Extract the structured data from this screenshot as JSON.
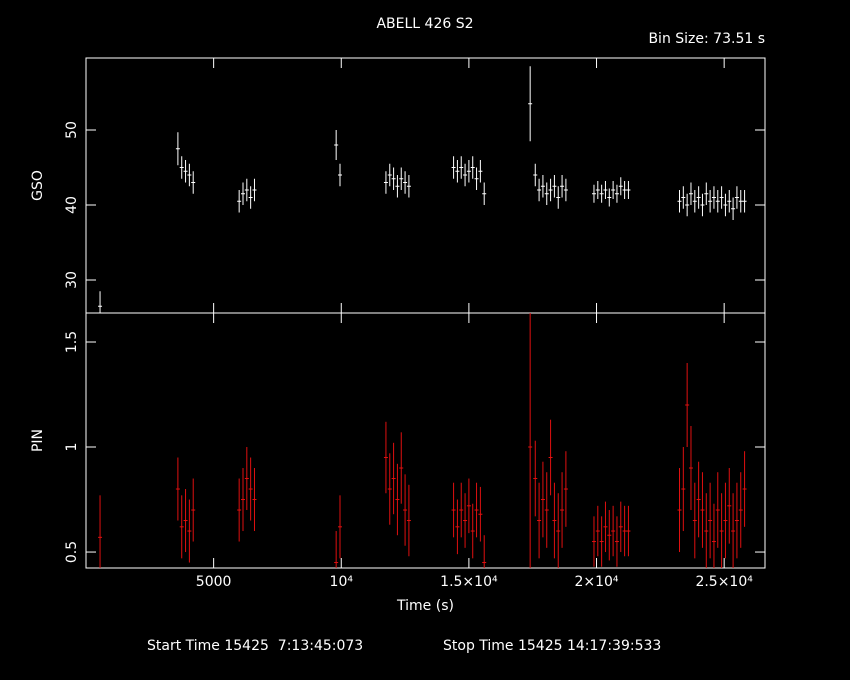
{
  "title": "ABELL 426 S2",
  "subtitle": "Bin Size: 73.51 s",
  "footer": {
    "start": "Start Time 15425  7:13:45:073",
    "stop": "Stop Time 15425 14:17:39:533"
  },
  "chart_data": [
    {
      "type": "errorbar",
      "ylabel": "GSO",
      "color": "#ffffff",
      "x": [
        550,
        3600,
        3750,
        3900,
        4050,
        4200,
        6000,
        6150,
        6300,
        6450,
        6600,
        9800,
        9950,
        11750,
        11900,
        12050,
        12200,
        12350,
        12500,
        12650,
        14400,
        14550,
        14700,
        14850,
        15000,
        15150,
        15300,
        15450,
        15600,
        17400,
        17600,
        17750,
        17900,
        18050,
        18200,
        18350,
        18500,
        18650,
        18800,
        19900,
        20050,
        20200,
        20350,
        20500,
        20650,
        20800,
        20950,
        21100,
        21250,
        23250,
        23400,
        23550,
        23700,
        23850,
        24000,
        24150,
        24300,
        24450,
        24600,
        24750,
        24900,
        25050,
        25200,
        25350,
        25500,
        25650,
        25800
      ],
      "values": [
        26.5,
        47.5,
        45,
        44.5,
        44,
        43,
        40.5,
        41.5,
        42,
        41,
        42,
        48,
        44,
        43,
        44,
        43.5,
        42.5,
        43.5,
        43,
        42.5,
        45,
        44.5,
        45,
        44,
        44.5,
        45,
        43.5,
        44.5,
        41.5,
        53.5,
        44,
        42,
        42.5,
        41.5,
        42,
        42.5,
        41,
        42.5,
        42,
        41.5,
        42,
        41.5,
        42,
        41,
        42,
        41.5,
        42.5,
        42,
        42,
        40.5,
        41,
        40,
        41.5,
        40.5,
        41,
        40,
        41.5,
        40.5,
        41,
        40.5,
        41,
        40,
        40.5,
        39.5,
        41,
        40.5,
        40.5
      ],
      "errors": [
        2,
        2.2,
        1.5,
        1.5,
        1.5,
        1.5,
        1.5,
        1.5,
        1.5,
        1.5,
        1.5,
        2,
        1.5,
        1.5,
        1.5,
        1.5,
        1.5,
        1.5,
        1.5,
        1.5,
        1.5,
        1.5,
        1.5,
        1.5,
        1.5,
        1.5,
        1.5,
        1.5,
        1.5,
        5,
        1.5,
        1.5,
        1.5,
        1.5,
        1.5,
        1.5,
        1.5,
        1.5,
        1.5,
        1.2,
        1.2,
        1.2,
        1.2,
        1.2,
        1.2,
        1.2,
        1.2,
        1.2,
        1.2,
        1.5,
        1.5,
        1.5,
        1.5,
        1.5,
        1.5,
        1.5,
        1.5,
        1.5,
        1.5,
        1.5,
        1.5,
        1.5,
        1.5,
        1.5,
        1.5,
        1.5,
        1.5
      ],
      "ylim": [
        25.6,
        59.6
      ],
      "yticks": [
        30,
        40,
        50
      ]
    },
    {
      "type": "errorbar",
      "ylabel": "PIN",
      "xlabel": "Time (s)",
      "color": "#e01010",
      "x": [
        550,
        3600,
        3750,
        3900,
        4050,
        4200,
        6000,
        6150,
        6300,
        6450,
        6600,
        9800,
        9950,
        11750,
        11900,
        12050,
        12200,
        12350,
        12500,
        12650,
        14400,
        14550,
        14700,
        14850,
        15000,
        15150,
        15300,
        15450,
        15600,
        17400,
        17600,
        17750,
        17900,
        18050,
        18200,
        18350,
        18500,
        18650,
        18800,
        19900,
        20050,
        20200,
        20350,
        20500,
        20650,
        20800,
        20950,
        21100,
        21250,
        23250,
        23400,
        23550,
        23700,
        23850,
        24000,
        24150,
        24300,
        24450,
        24600,
        24750,
        24900,
        25050,
        25200,
        25350,
        25500,
        25650,
        25800
      ],
      "values": [
        0.57,
        0.8,
        0.62,
        0.65,
        0.6,
        0.7,
        0.7,
        0.75,
        0.85,
        0.8,
        0.75,
        0.45,
        0.62,
        0.95,
        0.8,
        0.85,
        0.75,
        0.9,
        0.7,
        0.65,
        0.7,
        0.62,
        0.7,
        0.65,
        0.72,
        0.6,
        0.7,
        0.68,
        0.45,
        1.0,
        0.85,
        0.65,
        0.75,
        0.7,
        0.95,
        0.65,
        0.6,
        0.7,
        0.8,
        0.55,
        0.6,
        0.55,
        0.62,
        0.58,
        0.6,
        0.55,
        0.62,
        0.6,
        0.6,
        0.7,
        0.8,
        1.2,
        0.9,
        0.65,
        0.75,
        0.7,
        0.6,
        0.65,
        0.55,
        0.7,
        0.6,
        0.65,
        0.72,
        0.6,
        0.65,
        0.7,
        0.8
      ],
      "errors": [
        0.2,
        0.15,
        0.15,
        0.15,
        0.15,
        0.15,
        0.15,
        0.15,
        0.15,
        0.15,
        0.15,
        0.15,
        0.15,
        0.17,
        0.17,
        0.17,
        0.17,
        0.17,
        0.17,
        0.17,
        0.13,
        0.13,
        0.13,
        0.13,
        0.13,
        0.13,
        0.13,
        0.13,
        0.13,
        0.65,
        0.18,
        0.18,
        0.18,
        0.18,
        0.18,
        0.18,
        0.18,
        0.18,
        0.18,
        0.12,
        0.12,
        0.12,
        0.12,
        0.12,
        0.12,
        0.12,
        0.12,
        0.12,
        0.12,
        0.2,
        0.2,
        0.2,
        0.2,
        0.18,
        0.18,
        0.18,
        0.18,
        0.18,
        0.18,
        0.18,
        0.18,
        0.18,
        0.18,
        0.18,
        0.18,
        0.18,
        0.18
      ],
      "ylim": [
        0.424,
        1.638
      ],
      "yticks": [
        0.5,
        1,
        1.5
      ],
      "xlim": [
        0,
        26600
      ],
      "xticks": [
        5000,
        {
          "value": 10000,
          "label": "10⁴"
        },
        {
          "value": 15000,
          "label": "1.5×10⁴"
        },
        {
          "value": 20000,
          "label": "2×10⁴"
        },
        {
          "value": 25000,
          "label": "2.5×10⁴"
        }
      ]
    }
  ]
}
